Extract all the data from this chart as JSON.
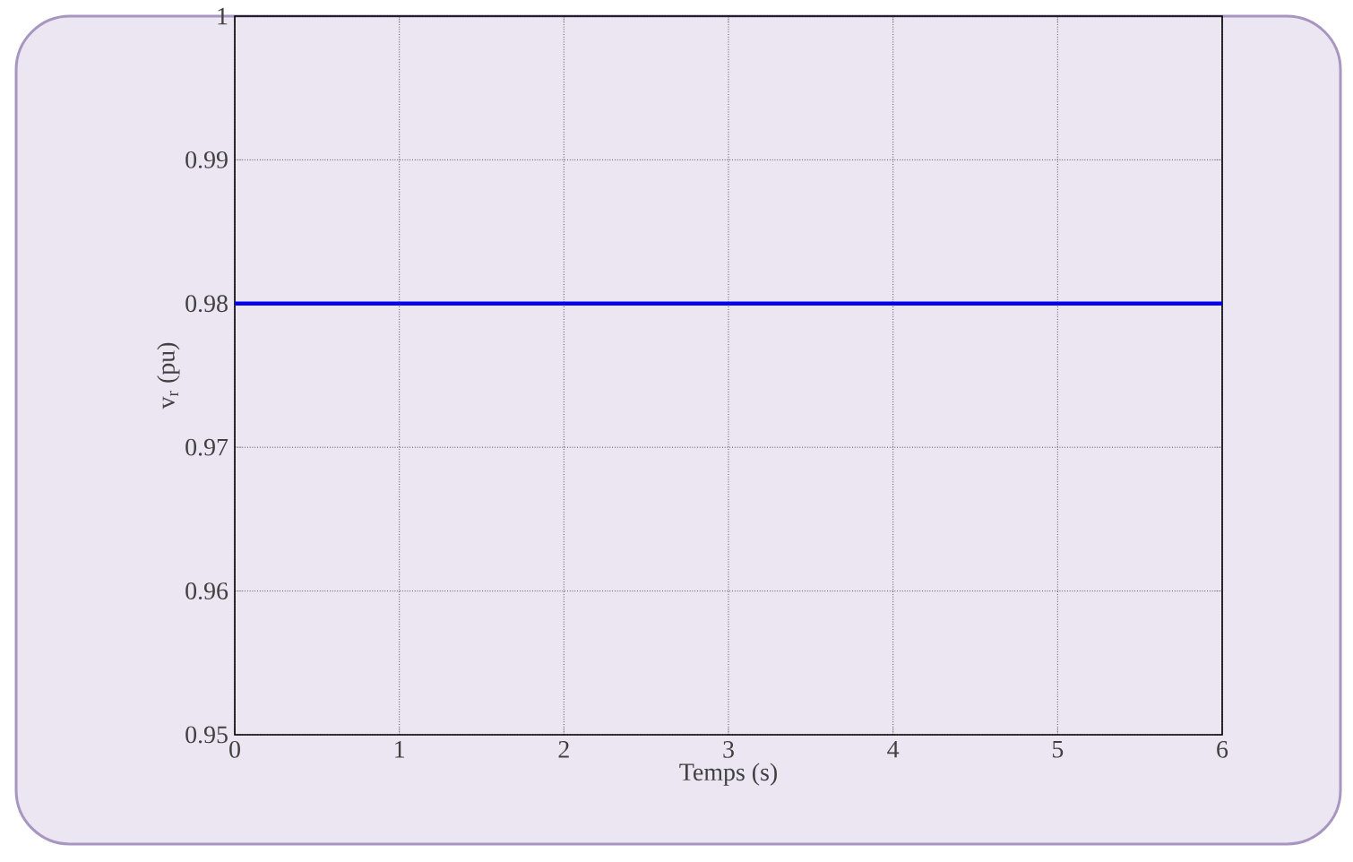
{
  "chart_data": {
    "type": "line",
    "xlabel": "Temps (s)",
    "ylabel": "v$_{r}$ (pu)",
    "x": [
      0,
      6
    ],
    "series": [
      {
        "color": "#0000ee",
        "values": [
          0.98,
          0.98
        ]
      }
    ],
    "xlim": [
      0,
      6
    ],
    "xticks": [
      0,
      1,
      2,
      3,
      4,
      5,
      6
    ],
    "ylim": [
      0.95,
      1
    ],
    "yticks": [
      0.95,
      0.96,
      0.97,
      0.98,
      0.99,
      1
    ],
    "grid": true,
    "marker": "none",
    "line_style": "solid"
  }
}
